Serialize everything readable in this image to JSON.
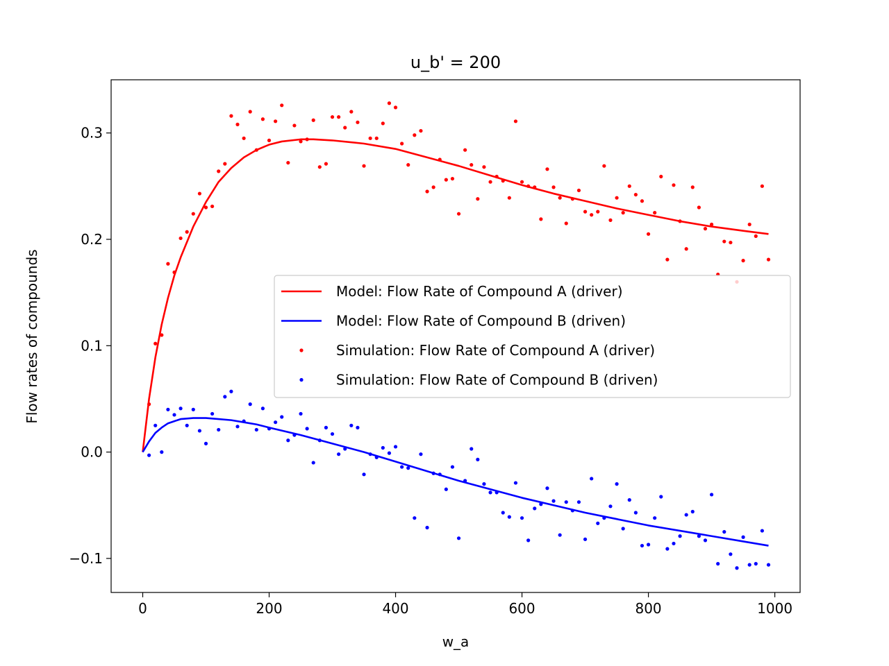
{
  "chart_data": {
    "type": "line",
    "title": "u_b' = 200",
    "xlabel": "w_a",
    "ylabel": "Flow rates of compounds",
    "xlim": [
      -50,
      1040
    ],
    "ylim": [
      -0.132,
      0.35
    ],
    "xticks": [
      0,
      200,
      400,
      600,
      800,
      1000
    ],
    "yticks": [
      -0.1,
      0.0,
      0.1,
      0.2,
      0.3
    ],
    "ytick_labels": [
      "−0.1",
      "0.0",
      "0.1",
      "0.2",
      "0.3"
    ],
    "grid": false,
    "legend_position": "center-right",
    "series": [
      {
        "name": "Model: Flow Rate of Compound A (driver)",
        "kind": "line",
        "color": "#ff0000",
        "x": [
          0,
          10,
          20,
          30,
          40,
          50,
          60,
          80,
          100,
          120,
          140,
          160,
          180,
          200,
          220,
          250,
          270,
          300,
          350,
          400,
          450,
          500,
          550,
          600,
          650,
          700,
          750,
          800,
          850,
          900,
          950,
          990
        ],
        "y": [
          0.0,
          0.05,
          0.089,
          0.12,
          0.145,
          0.166,
          0.183,
          0.212,
          0.235,
          0.254,
          0.267,
          0.277,
          0.284,
          0.289,
          0.292,
          0.294,
          0.294,
          0.293,
          0.29,
          0.285,
          0.277,
          0.269,
          0.26,
          0.251,
          0.243,
          0.236,
          0.229,
          0.223,
          0.217,
          0.212,
          0.208,
          0.205
        ]
      },
      {
        "name": "Model: Flow Rate of Compound B (driven)",
        "kind": "line",
        "color": "#0000ff",
        "x": [
          0,
          10,
          20,
          30,
          40,
          50,
          60,
          80,
          100,
          120,
          140,
          160,
          180,
          200,
          250,
          300,
          350,
          400,
          450,
          500,
          550,
          600,
          650,
          700,
          750,
          800,
          850,
          900,
          950,
          990
        ],
        "y": [
          0.0,
          0.01,
          0.018,
          0.023,
          0.027,
          0.029,
          0.031,
          0.032,
          0.032,
          0.031,
          0.03,
          0.028,
          0.026,
          0.023,
          0.016,
          0.008,
          0.0,
          -0.009,
          -0.018,
          -0.027,
          -0.035,
          -0.043,
          -0.05,
          -0.057,
          -0.063,
          -0.069,
          -0.074,
          -0.079,
          -0.084,
          -0.088
        ]
      },
      {
        "name": "Simulation: Flow Rate of Compound A (driver)",
        "kind": "scatter",
        "color": "#ff0000",
        "x": [
          10,
          20,
          30,
          40,
          50,
          60,
          70,
          80,
          90,
          100,
          110,
          120,
          130,
          140,
          150,
          160,
          170,
          180,
          190,
          200,
          210,
          220,
          230,
          240,
          250,
          260,
          270,
          280,
          290,
          300,
          310,
          320,
          330,
          340,
          350,
          360,
          370,
          380,
          390,
          400,
          410,
          420,
          430,
          440,
          450,
          460,
          470,
          480,
          490,
          500,
          510,
          520,
          530,
          540,
          550,
          560,
          570,
          580,
          590,
          600,
          610,
          620,
          630,
          640,
          650,
          660,
          670,
          680,
          690,
          700,
          710,
          720,
          730,
          740,
          750,
          760,
          770,
          780,
          790,
          800,
          810,
          820,
          830,
          840,
          850,
          860,
          870,
          880,
          890,
          900,
          910,
          920,
          930,
          940,
          950,
          960,
          970,
          980,
          990
        ],
        "y": [
          0.045,
          0.102,
          0.11,
          0.177,
          0.169,
          0.201,
          0.207,
          0.224,
          0.243,
          0.23,
          0.231,
          0.264,
          0.271,
          0.316,
          0.308,
          0.295,
          0.32,
          0.284,
          0.313,
          0.293,
          0.311,
          0.326,
          0.272,
          0.307,
          0.292,
          0.294,
          0.312,
          0.268,
          0.271,
          0.315,
          0.315,
          0.305,
          0.32,
          0.31,
          0.269,
          0.295,
          0.295,
          0.309,
          0.328,
          0.324,
          0.29,
          0.27,
          0.298,
          0.302,
          0.245,
          0.249,
          0.275,
          0.256,
          0.257,
          0.224,
          0.284,
          0.27,
          0.238,
          0.268,
          0.254,
          0.259,
          0.255,
          0.239,
          0.311,
          0.254,
          0.25,
          0.249,
          0.219,
          0.266,
          0.249,
          0.239,
          0.215,
          0.238,
          0.246,
          0.226,
          0.223,
          0.226,
          0.269,
          0.218,
          0.239,
          0.225,
          0.25,
          0.242,
          0.236,
          0.205,
          0.225,
          0.259,
          0.181,
          0.251,
          0.217,
          0.191,
          0.249,
          0.23,
          0.21,
          0.214,
          0.167,
          0.198,
          0.197,
          0.16,
          0.18,
          0.214,
          0.203,
          0.25,
          0.181
        ]
      },
      {
        "name": "Simulation: Flow Rate of Compound B (driven)",
        "kind": "scatter",
        "color": "#0000ff",
        "x": [
          10,
          20,
          30,
          40,
          50,
          60,
          70,
          80,
          90,
          100,
          110,
          120,
          130,
          140,
          150,
          160,
          170,
          180,
          190,
          200,
          210,
          220,
          230,
          240,
          250,
          260,
          270,
          280,
          290,
          300,
          310,
          320,
          330,
          340,
          350,
          360,
          370,
          380,
          390,
          400,
          410,
          420,
          430,
          440,
          450,
          460,
          470,
          480,
          490,
          500,
          510,
          520,
          530,
          540,
          550,
          560,
          570,
          580,
          590,
          600,
          610,
          620,
          630,
          640,
          650,
          660,
          670,
          680,
          690,
          700,
          710,
          720,
          730,
          740,
          750,
          760,
          770,
          780,
          790,
          800,
          810,
          820,
          830,
          840,
          850,
          860,
          870,
          880,
          890,
          900,
          910,
          920,
          930,
          940,
          950,
          960,
          970,
          980,
          990
        ],
        "y": [
          -0.003,
          0.025,
          0.0,
          0.04,
          0.035,
          0.041,
          0.025,
          0.04,
          0.02,
          0.008,
          0.036,
          0.021,
          0.052,
          0.057,
          0.024,
          0.029,
          0.045,
          0.021,
          0.041,
          0.022,
          0.028,
          0.033,
          0.011,
          0.016,
          0.036,
          0.022,
          -0.01,
          0.011,
          0.023,
          0.017,
          -0.002,
          0.003,
          0.025,
          0.023,
          -0.021,
          -0.002,
          -0.005,
          0.004,
          -0.001,
          0.005,
          -0.014,
          -0.015,
          -0.062,
          -0.002,
          -0.071,
          -0.02,
          -0.021,
          -0.035,
          -0.014,
          -0.081,
          -0.027,
          0.003,
          -0.007,
          -0.03,
          -0.038,
          -0.038,
          -0.057,
          -0.061,
          -0.029,
          -0.062,
          -0.083,
          -0.053,
          -0.049,
          -0.034,
          -0.046,
          -0.078,
          -0.047,
          -0.055,
          -0.047,
          -0.082,
          -0.025,
          -0.067,
          -0.062,
          -0.051,
          -0.03,
          -0.072,
          -0.045,
          -0.057,
          -0.088,
          -0.087,
          -0.062,
          -0.042,
          -0.091,
          -0.086,
          -0.079,
          -0.059,
          -0.056,
          -0.079,
          -0.083,
          -0.04,
          -0.105,
          -0.075,
          -0.096,
          -0.109,
          -0.08,
          -0.106,
          -0.105,
          -0.074,
          -0.106
        ]
      }
    ]
  }
}
